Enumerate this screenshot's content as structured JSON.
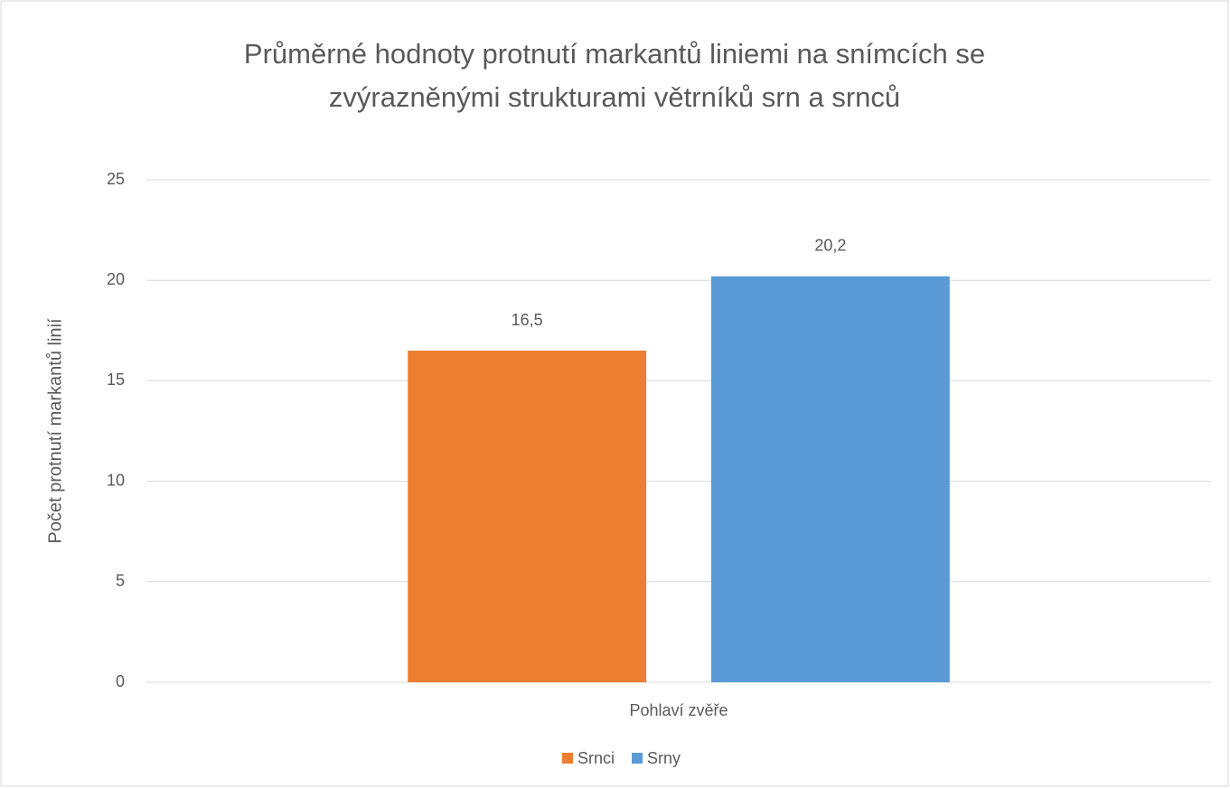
{
  "chart_data": {
    "type": "bar",
    "title": "Průměrné hodnoty protnutí markantů liniemi na snímcích se zvýrazněnými strukturami větrníků srn a srnců",
    "x_label": "Pohlaví zvěře",
    "y_label": "Počet protnutí markantů linií",
    "categories": [
      "Pohlaví zvěře"
    ],
    "series": [
      {
        "name": "Srnci",
        "color": "#ed7d31",
        "values": [
          16.5
        ],
        "value_labels": [
          "16,5"
        ]
      },
      {
        "name": "Srny",
        "color": "#5b9bd5",
        "values": [
          20.2
        ],
        "value_labels": [
          "20,2"
        ]
      }
    ],
    "ylim": [
      0,
      25
    ],
    "yticks": [
      0,
      5,
      10,
      15,
      20,
      25
    ],
    "grid": true,
    "legend": "bottom"
  }
}
